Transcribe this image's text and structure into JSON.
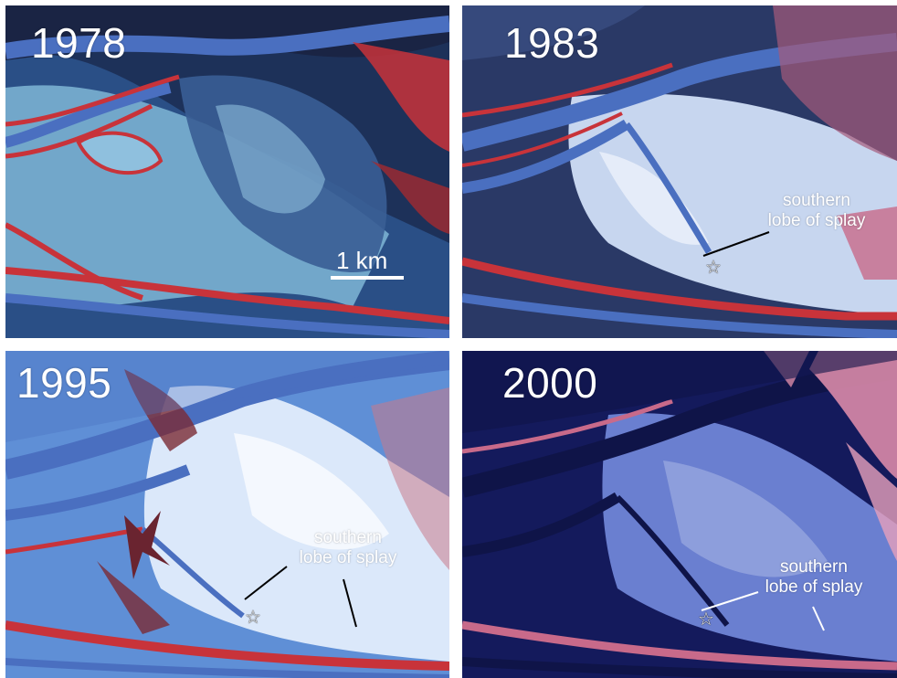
{
  "panels": [
    {
      "year": "1978",
      "scale_label": "1 km"
    },
    {
      "year": "1983",
      "label_line1": "southern",
      "label_line2": "lobe of splay"
    },
    {
      "year": "1995",
      "label_line1": "southern",
      "label_line2": "lobe of splay"
    },
    {
      "year": "2000",
      "label_line1": "southern",
      "label_line2": "lobe of splay"
    }
  ],
  "symbols": {
    "star": "☆",
    "star_icon": "star-icon"
  },
  "colors": {
    "vegetation": "#c8333a",
    "water_channel": "#4a6fc0",
    "sediment": "#9fc4e0",
    "deep_water": "#1e2a5a",
    "text": "#ffffff"
  }
}
